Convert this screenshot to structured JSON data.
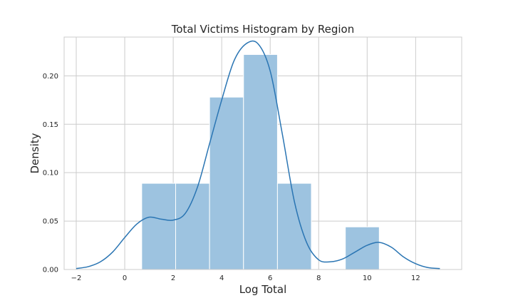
{
  "chart_data": {
    "type": "bar",
    "title": "Total Victims Histogram by Region",
    "xlabel": "Log Total",
    "ylabel": "Density",
    "xlim": [
      -2.5,
      13.9
    ],
    "ylim": [
      0,
      0.24
    ],
    "xticks": [
      -2,
      0,
      2,
      4,
      6,
      8,
      10,
      12
    ],
    "xtick_labels": [
      "−2",
      "0",
      "2",
      "4",
      "6",
      "8",
      "10",
      "12"
    ],
    "yticks": [
      0.0,
      0.05,
      0.1,
      0.15,
      0.2
    ],
    "ytick_labels": [
      "0.00",
      "0.05",
      "0.10",
      "0.15",
      "0.20"
    ],
    "grid": true,
    "bars": [
      {
        "x0": 0.7,
        "x1": 2.1,
        "value": 0.089
      },
      {
        "x0": 2.1,
        "x1": 3.5,
        "value": 0.089
      },
      {
        "x0": 3.5,
        "x1": 4.9,
        "value": 0.178
      },
      {
        "x0": 4.9,
        "x1": 6.3,
        "value": 0.222
      },
      {
        "x0": 6.3,
        "x1": 7.7,
        "value": 0.089
      },
      {
        "x0": 7.7,
        "x1": 9.1,
        "value": 0.0
      },
      {
        "x0": 9.1,
        "x1": 10.5,
        "value": 0.044
      }
    ],
    "kde": {
      "x": [
        -2.0,
        -1.5,
        -1.0,
        -0.5,
        0.0,
        0.5,
        1.0,
        1.5,
        2.0,
        2.5,
        3.0,
        3.5,
        4.0,
        4.5,
        5.0,
        5.5,
        6.0,
        6.5,
        7.0,
        7.5,
        8.0,
        8.5,
        9.0,
        9.5,
        10.0,
        10.5,
        11.0,
        11.5,
        12.0,
        12.5,
        13.0
      ],
      "y": [
        0.001,
        0.003,
        0.008,
        0.018,
        0.033,
        0.047,
        0.054,
        0.052,
        0.051,
        0.058,
        0.085,
        0.13,
        0.175,
        0.215,
        0.233,
        0.233,
        0.205,
        0.14,
        0.07,
        0.028,
        0.01,
        0.008,
        0.011,
        0.018,
        0.025,
        0.028,
        0.023,
        0.013,
        0.006,
        0.002,
        0.001
      ]
    },
    "colors": {
      "bar_fill": "#9dc3e0",
      "line": "#2a75b3",
      "grid": "#cccccc",
      "axes_edge": "#cccccc"
    }
  }
}
